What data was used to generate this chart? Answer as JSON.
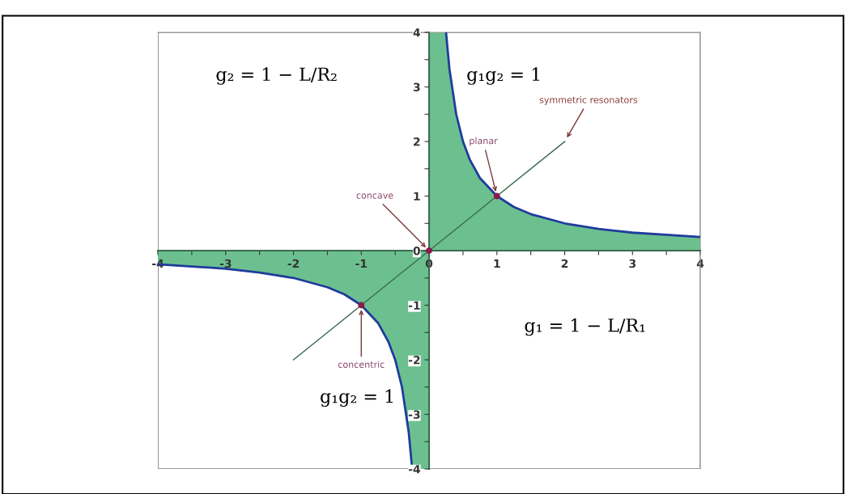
{
  "chart_data": {
    "type": "area",
    "xlim": [
      -4,
      4
    ],
    "ylim": [
      -4,
      4
    ],
    "xticks": [
      -4,
      {
        "value": -3.5,
        "label": null
      },
      -3,
      {
        "value": -2.5,
        "label": null
      },
      -2,
      {
        "value": -1.5,
        "label": null
      },
      -1,
      {
        "value": -0.5,
        "label": null
      },
      0,
      {
        "value": 0.5,
        "label": null
      },
      1,
      {
        "value": 1.5,
        "label": null
      },
      2,
      {
        "value": 2.5,
        "label": null
      },
      3,
      {
        "value": 3.5,
        "label": null
      },
      4
    ],
    "yticks": [
      -4,
      {
        "value": -3.5,
        "label": null
      },
      -3,
      {
        "value": -2.5,
        "label": null
      },
      -2,
      {
        "value": -1.5,
        "label": null
      },
      -1,
      {
        "value": -0.5,
        "label": null
      },
      0,
      {
        "value": 0.5,
        "label": null
      },
      1,
      {
        "value": 1.5,
        "label": null
      },
      2,
      {
        "value": 2.5,
        "label": null
      },
      3,
      {
        "value": 3.5,
        "label": null
      },
      4
    ],
    "grid": false,
    "series": [
      {
        "color": "#6cc08f",
        "x": [
          0,
          0.25,
          0.3,
          0.4,
          0.5,
          0.6,
          0.75,
          1,
          1.25,
          1.5,
          2,
          2.5,
          3,
          3.5,
          4
        ],
        "values": [
          4,
          4,
          3.33,
          2.5,
          2,
          1.67,
          1.33,
          1,
          0.8,
          0.67,
          0.5,
          0.4,
          0.33,
          0.29,
          0.25
        ]
      },
      {
        "color": "#6cc08f",
        "x": [
          -4,
          -3.5,
          -3,
          -2.5,
          -2,
          -1.5,
          -1.25,
          -1,
          -0.75,
          -0.6,
          -0.5,
          -0.4,
          -0.3,
          -0.25,
          0
        ],
        "values": [
          -0.25,
          -0.29,
          -0.33,
          -0.4,
          -0.5,
          -0.67,
          -0.8,
          -1,
          -1.33,
          -1.67,
          -2,
          -2.5,
          -3.33,
          -4,
          -4
        ]
      },
      {
        "type": "line",
        "color": "#1f3c9c",
        "x": [
          0.25,
          0.3,
          0.4,
          0.5,
          0.6,
          0.75,
          1,
          1.25,
          1.5,
          2,
          2.5,
          3,
          3.5,
          4
        ],
        "values": [
          4,
          3.33,
          2.5,
          2,
          1.67,
          1.33,
          1,
          0.8,
          0.67,
          0.5,
          0.4,
          0.33,
          0.29,
          0.25
        ]
      },
      {
        "type": "line",
        "color": "#1f3c9c",
        "x": [
          -4,
          -3.5,
          -3,
          -2.5,
          -2,
          -1.5,
          -1.25,
          -1,
          -0.75,
          -0.6,
          -0.5,
          -0.4,
          -0.3,
          -0.25
        ],
        "values": [
          -0.25,
          -0.29,
          -0.33,
          -0.4,
          -0.5,
          -0.67,
          -0.8,
          -1,
          -1.33,
          -1.67,
          -2,
          -2.5,
          -3.33,
          -4
        ]
      },
      {
        "type": "line",
        "color": "#3a6b50",
        "x": [
          -2,
          2
        ],
        "values": [
          -2,
          2
        ]
      },
      {
        "type": "scatter",
        "color": "#8b1a4a",
        "x": [
          -1,
          0,
          1
        ],
        "values": [
          -1,
          0,
          1
        ]
      }
    ],
    "annotations": [
      {
        "text": "concave",
        "x": 0,
        "y": 0
      },
      {
        "text": "planar",
        "x": 1,
        "y": 1
      },
      {
        "text": "symmetric resonators",
        "x": 2,
        "y": 2
      },
      {
        "text": "concentric",
        "x": -1,
        "y": -1
      },
      "g₂ = 1 − L/R₂",
      "g₁g₂ = 1",
      "g₁g₂ = 1",
      "g₁ = 1 − L/R₁"
    ]
  }
}
